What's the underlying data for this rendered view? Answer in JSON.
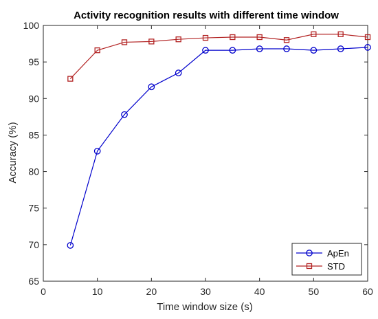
{
  "chart_data": {
    "type": "line",
    "title": "Activity recognition results with different time window",
    "xlabel": "Time window size (s)",
    "ylabel": "Accuracy (%)",
    "xlim": [
      0,
      60
    ],
    "ylim": [
      65,
      100
    ],
    "xticks": [
      0,
      10,
      20,
      30,
      40,
      50,
      60
    ],
    "yticks": [
      65,
      70,
      75,
      80,
      85,
      90,
      95,
      100
    ],
    "grid": false,
    "legend_position": "bottom-right",
    "x": [
      5,
      10,
      15,
      20,
      25,
      30,
      35,
      40,
      45,
      50,
      55,
      60
    ],
    "series": [
      {
        "name": "ApEn",
        "color": "#0000cc",
        "marker": "circle",
        "values": [
          69.9,
          82.8,
          87.8,
          91.6,
          93.5,
          96.6,
          96.6,
          96.8,
          96.8,
          96.6,
          96.8,
          97.0
        ]
      },
      {
        "name": "STD",
        "color": "#b22222",
        "marker": "square",
        "values": [
          92.7,
          96.6,
          97.7,
          97.8,
          98.1,
          98.3,
          98.4,
          98.4,
          98.0,
          98.8,
          98.8,
          98.4
        ]
      }
    ]
  }
}
